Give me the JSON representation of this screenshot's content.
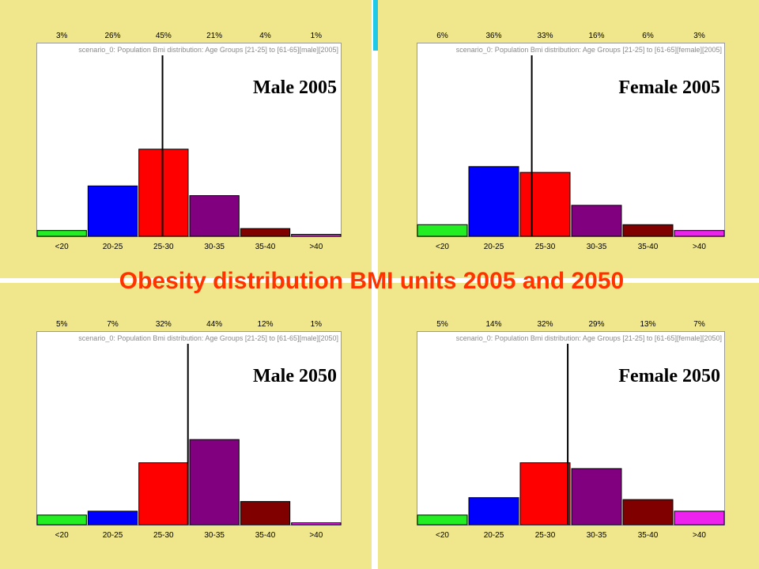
{
  "slide": {
    "title": "Obesity distribution BMI units 2005 and 2050"
  },
  "colors": {
    "background": "#f0e68c",
    "title": "#ff3300",
    "accent": "#1ec8e6"
  },
  "chart_data": [
    {
      "type": "bar",
      "label": "Male 2005",
      "subtitle": "scenario_0: Population Bmi distribution: Age Groups [21-25] to [61-65][male][2005]",
      "categories": [
        "<20",
        "20-25",
        "25-30",
        "30-35",
        "35-40",
        ">40"
      ],
      "percent_labels": [
        "3%",
        "26%",
        "45%",
        "21%",
        "4%",
        "1%"
      ],
      "values": [
        3,
        26,
        45,
        21,
        4,
        1
      ],
      "colors": [
        "#22ee22",
        "#0000ff",
        "#ff0000",
        "#800080",
        "#800000",
        "#ee22ee"
      ],
      "mean_marker": 27.4,
      "ylim": [
        0,
        100
      ],
      "x_domain": [
        15,
        45
      ]
    },
    {
      "type": "bar",
      "label": "Female 2005",
      "subtitle": "scenario_0: Population Bmi distribution: Age Groups [21-25] to [61-65][female][2005]",
      "categories": [
        "<20",
        "20-25",
        "25-30",
        "30-35",
        "35-40",
        ">40"
      ],
      "percent_labels": [
        "6%",
        "36%",
        "33%",
        "16%",
        "6%",
        "3%"
      ],
      "values": [
        6,
        36,
        33,
        16,
        6,
        3
      ],
      "colors": [
        "#22ee22",
        "#0000ff",
        "#ff0000",
        "#800080",
        "#800000",
        "#ee22ee"
      ],
      "mean_marker": 26.2,
      "ylim": [
        0,
        100
      ],
      "x_domain": [
        15,
        45
      ]
    },
    {
      "type": "bar",
      "label": "Male 2050",
      "subtitle": "scenario_0: Population Bmi distribution: Age Groups [21-25] to [61-65][male][2050]",
      "categories": [
        "<20",
        "20-25",
        "25-30",
        "30-35",
        "35-40",
        ">40"
      ],
      "percent_labels": [
        "5%",
        "7%",
        "32%",
        "44%",
        "12%",
        "1%"
      ],
      "values": [
        5,
        7,
        32,
        44,
        12,
        1
      ],
      "colors": [
        "#22ee22",
        "#0000ff",
        "#ff0000",
        "#800080",
        "#800000",
        "#ee22ee"
      ],
      "mean_marker": 29.9,
      "ylim": [
        0,
        100
      ],
      "x_domain": [
        15,
        45
      ]
    },
    {
      "type": "bar",
      "label": "Female 2050",
      "subtitle": "scenario_0: Population Bmi distribution: Age Groups [21-25] to [61-65][female][2050]",
      "categories": [
        "<20",
        "20-25",
        "25-30",
        "30-35",
        "35-40",
        ">40"
      ],
      "percent_labels": [
        "5%",
        "14%",
        "32%",
        "29%",
        "13%",
        "7%"
      ],
      "values": [
        5,
        14,
        32,
        29,
        13,
        7
      ],
      "colors": [
        "#22ee22",
        "#0000ff",
        "#ff0000",
        "#800080",
        "#800000",
        "#ee22ee"
      ],
      "mean_marker": 29.7,
      "ylim": [
        0,
        100
      ],
      "x_domain": [
        15,
        45
      ]
    }
  ]
}
